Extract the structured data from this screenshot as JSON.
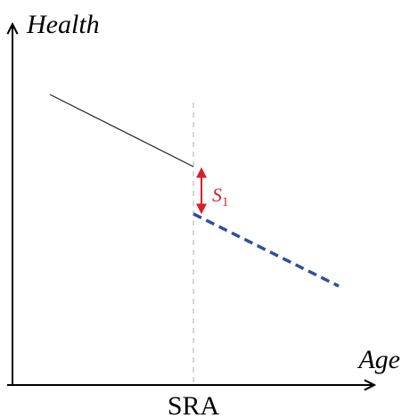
{
  "axes": {
    "y_label": "Health",
    "x_label": "Age",
    "x_marker": "SRA"
  },
  "annotation": {
    "symbol": "S",
    "subscript": "1"
  }
}
